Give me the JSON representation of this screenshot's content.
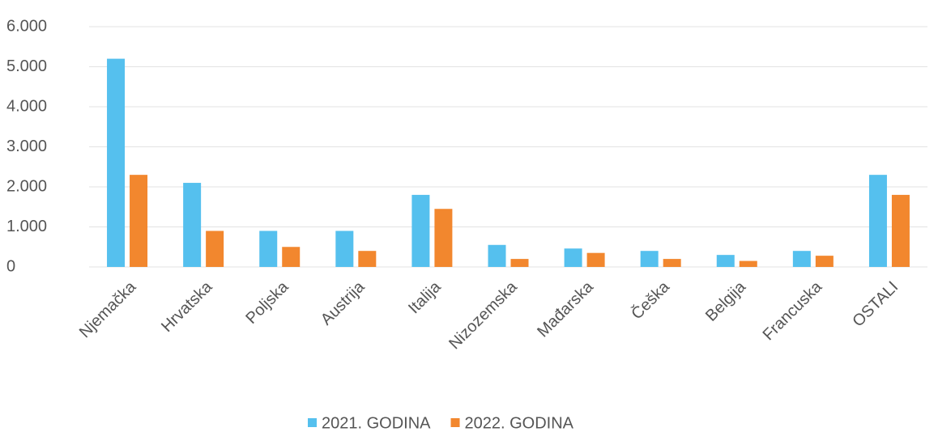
{
  "chart_data": {
    "type": "bar",
    "categories": [
      "Njemačka",
      "Hrvatska",
      "Poljska",
      "Austrija",
      "Italija",
      "Nizozemska",
      "Mađarska",
      "Češka",
      "Belgija",
      "Francuska",
      "OSTALI"
    ],
    "series": [
      {
        "name": "2021. GODINA",
        "color": "#55c0ee",
        "values": [
          5200,
          2100,
          900,
          900,
          1800,
          550,
          460,
          400,
          300,
          400,
          2300
        ]
      },
      {
        "name": "2022. GODINA",
        "color": "#f2872e",
        "values": [
          2300,
          900,
          500,
          400,
          1450,
          200,
          350,
          200,
          150,
          280,
          1800
        ]
      }
    ],
    "ylim": [
      0,
      6000
    ],
    "yticks": [
      0,
      {
        "value": 1000,
        "label": "1.000"
      },
      {
        "value": 2000,
        "label": "2.000"
      },
      {
        "value": 3000,
        "label": "3.000"
      },
      {
        "value": 4000,
        "label": "4.000"
      },
      {
        "value": 5000,
        "label": "5.000"
      },
      {
        "value": 6000,
        "label": "6.000"
      }
    ],
    "grid": true,
    "legend": "bottom"
  }
}
